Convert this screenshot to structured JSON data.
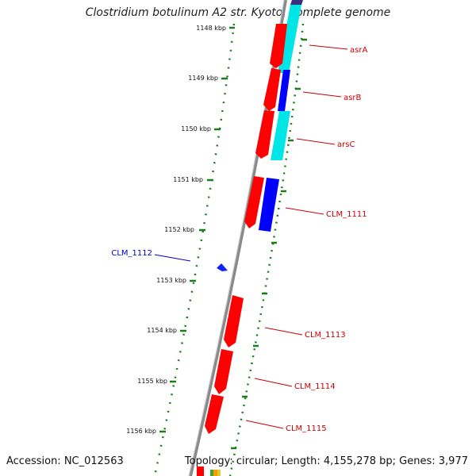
{
  "title": "Clostridium botulinum A2 str. Kyoto, complete genome",
  "accession": "Accession: NC_012563",
  "summary": "Topology: circular; Length: 4,155,278 bp; Genes: 3,977",
  "colors": {
    "backbone": "#8a8a8a",
    "tick": "#1a7f1a",
    "forward_cds": "#ff0000",
    "reverse_cds": "#0000ff",
    "other_feature": "#00e5e5",
    "dark_feature": "#3a2f7a",
    "label_red": "#cc0000",
    "label_blue": "#0000cc"
  },
  "scale_labels": [
    "1148 kbp",
    "1149 kbp",
    "1150 kbp",
    "1151 kbp",
    "1152 kbp",
    "1153 kbp",
    "1154 kbp",
    "1155 kbp",
    "1156 kbp"
  ],
  "gene_labels": [
    {
      "text": "asrA",
      "color": "red"
    },
    {
      "text": "asrB",
      "color": "red"
    },
    {
      "text": "arsC",
      "color": "red"
    },
    {
      "text": "CLM_1111",
      "color": "red"
    },
    {
      "text": "CLM_1112",
      "color": "blue"
    },
    {
      "text": "CLM_1113",
      "color": "red"
    },
    {
      "text": "CLM_1114",
      "color": "red"
    },
    {
      "text": "CLM_1115",
      "color": "red"
    }
  ]
}
